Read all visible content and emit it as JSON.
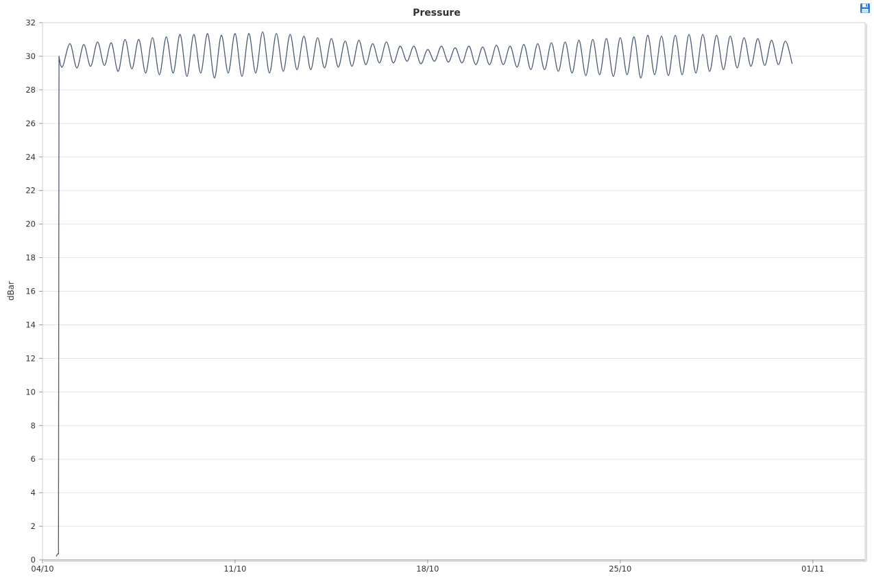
{
  "chart_data": {
    "type": "line",
    "title": "Pressure",
    "xlabel": "",
    "ylabel": "dBar",
    "ylim": [
      0,
      32
    ],
    "y_ticks": [
      0,
      2,
      4,
      6,
      8,
      10,
      12,
      14,
      16,
      18,
      20,
      22,
      24,
      26,
      28,
      30,
      32
    ],
    "x_ticks": [
      "04/10",
      "11/10",
      "18/10",
      "25/10",
      "01/11"
    ],
    "x_range_days": [
      0,
      29.9
    ],
    "grid": true,
    "legend": "none",
    "series": [
      {
        "color": "#4a5a78",
        "points": [
          [
            0.5,
            0.2
          ],
          [
            0.55,
            0.35
          ],
          [
            0.58,
            0.35
          ],
          [
            0.6,
            30.0
          ],
          [
            0.65,
            29.5
          ],
          [
            0.75,
            29.45
          ],
          [
            1.0,
            30.75
          ],
          [
            1.25,
            29.3
          ],
          [
            1.5,
            30.7
          ],
          [
            1.75,
            29.4
          ],
          [
            2.0,
            30.85
          ],
          [
            2.25,
            29.45
          ],
          [
            2.5,
            30.8
          ],
          [
            2.75,
            29.1
          ],
          [
            3.0,
            31.0
          ],
          [
            3.25,
            29.25
          ],
          [
            3.5,
            31.0
          ],
          [
            3.75,
            29.0
          ],
          [
            4.0,
            31.1
          ],
          [
            4.25,
            28.9
          ],
          [
            4.5,
            31.15
          ],
          [
            4.75,
            29.0
          ],
          [
            5.0,
            31.3
          ],
          [
            5.25,
            28.8
          ],
          [
            5.5,
            31.3
          ],
          [
            5.75,
            29.0
          ],
          [
            6.0,
            31.35
          ],
          [
            6.25,
            28.7
          ],
          [
            6.5,
            31.25
          ],
          [
            6.75,
            29.0
          ],
          [
            7.0,
            31.35
          ],
          [
            7.25,
            28.8
          ],
          [
            7.5,
            31.35
          ],
          [
            7.75,
            29.0
          ],
          [
            8.0,
            31.45
          ],
          [
            8.25,
            29.0
          ],
          [
            8.5,
            31.35
          ],
          [
            8.75,
            29.1
          ],
          [
            9.0,
            31.3
          ],
          [
            9.25,
            29.2
          ],
          [
            9.5,
            31.2
          ],
          [
            9.75,
            29.2
          ],
          [
            10.0,
            31.1
          ],
          [
            10.25,
            29.3
          ],
          [
            10.5,
            31.05
          ],
          [
            10.75,
            29.35
          ],
          [
            11.0,
            30.9
          ],
          [
            11.25,
            29.4
          ],
          [
            11.5,
            30.95
          ],
          [
            11.75,
            29.5
          ],
          [
            12.0,
            30.75
          ],
          [
            12.25,
            29.6
          ],
          [
            12.5,
            30.85
          ],
          [
            12.75,
            29.6
          ],
          [
            13.0,
            30.6
          ],
          [
            13.25,
            29.7
          ],
          [
            13.5,
            30.6
          ],
          [
            13.75,
            29.55
          ],
          [
            14.0,
            30.4
          ],
          [
            14.25,
            29.7
          ],
          [
            14.5,
            30.6
          ],
          [
            14.75,
            29.65
          ],
          [
            15.0,
            30.5
          ],
          [
            15.25,
            29.6
          ],
          [
            15.5,
            30.6
          ],
          [
            15.75,
            29.5
          ],
          [
            16.0,
            30.55
          ],
          [
            16.25,
            29.5
          ],
          [
            16.5,
            30.65
          ],
          [
            16.75,
            29.5
          ],
          [
            17.0,
            30.6
          ],
          [
            17.25,
            29.35
          ],
          [
            17.5,
            30.7
          ],
          [
            17.75,
            29.2
          ],
          [
            18.0,
            30.75
          ],
          [
            18.25,
            29.2
          ],
          [
            18.5,
            30.8
          ],
          [
            18.75,
            29.1
          ],
          [
            19.0,
            30.85
          ],
          [
            19.25,
            29.0
          ],
          [
            19.5,
            30.95
          ],
          [
            19.75,
            28.85
          ],
          [
            20.0,
            31.0
          ],
          [
            20.25,
            28.9
          ],
          [
            20.5,
            31.05
          ],
          [
            20.75,
            28.8
          ],
          [
            21.0,
            31.1
          ],
          [
            21.25,
            28.9
          ],
          [
            21.5,
            31.15
          ],
          [
            21.75,
            28.7
          ],
          [
            22.0,
            31.25
          ],
          [
            22.25,
            28.9
          ],
          [
            22.5,
            31.2
          ],
          [
            22.75,
            28.85
          ],
          [
            23.0,
            31.25
          ],
          [
            23.25,
            28.9
          ],
          [
            23.5,
            31.3
          ],
          [
            23.75,
            29.0
          ],
          [
            24.0,
            31.3
          ],
          [
            24.25,
            29.1
          ],
          [
            24.5,
            31.25
          ],
          [
            24.75,
            29.2
          ],
          [
            25.0,
            31.2
          ],
          [
            25.25,
            29.3
          ],
          [
            25.5,
            31.1
          ],
          [
            25.75,
            29.4
          ],
          [
            26.0,
            31.05
          ],
          [
            26.25,
            29.45
          ],
          [
            26.5,
            30.95
          ],
          [
            26.75,
            29.5
          ],
          [
            27.0,
            30.9
          ],
          [
            27.25,
            29.55
          ]
        ]
      }
    ]
  },
  "toolbar": {
    "save_icon": "save-icon"
  }
}
